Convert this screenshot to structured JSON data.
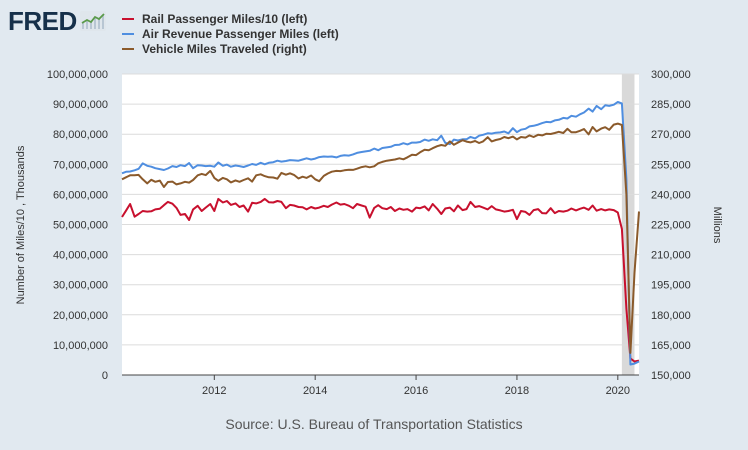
{
  "header": {
    "logo_text": "FRED",
    "logo_icon": "trend-line-icon"
  },
  "legend": [
    {
      "label": "Rail Passenger Miles/10 (left)",
      "color": "#c8102e"
    },
    {
      "label": "Air Revenue Passenger Miles (left)",
      "color": "#4f8ee0"
    },
    {
      "label": "Vehicle Miles Traveled (right)",
      "color": "#8b5a2b"
    }
  ],
  "source_text": "Source: U.S. Bureau of Transportation Statistics",
  "chart_data": {
    "type": "line",
    "ylabel": "Number of Miles/10 , Thousands",
    "ylabel_right": "Millions",
    "ylim": [
      0,
      100000000
    ],
    "ylim_right": [
      150000,
      300000
    ],
    "xlim": [
      2010.17,
      2020.42
    ],
    "recession_shading": [
      2020.08,
      2020.33
    ],
    "yticks_left": [
      "0",
      "10,000,000",
      "20,000,000",
      "30,000,000",
      "40,000,000",
      "50,000,000",
      "60,000,000",
      "70,000,000",
      "80,000,000",
      "90,000,000",
      "100,000,000"
    ],
    "yticks_right": [
      "150,000",
      "165,000",
      "180,000",
      "195,000",
      "210,000",
      "225,000",
      "240,000",
      "255,000",
      "270,000",
      "285,000",
      "300,000"
    ],
    "xticks": [
      {
        "label": "2012",
        "value": 2012
      },
      {
        "label": "2014",
        "value": 2014
      },
      {
        "label": "2016",
        "value": 2016
      },
      {
        "label": "2018",
        "value": 2018
      },
      {
        "label": "2020",
        "value": 2020
      }
    ],
    "series": [
      {
        "name": "Rail Passenger Miles/10 (left)",
        "axis": "left",
        "color": "#c8102e",
        "x": [
          2010.17,
          2010.25,
          2010.33,
          2010.42,
          2010.5,
          2010.58,
          2010.67,
          2010.75,
          2010.83,
          2010.92,
          2011.0,
          2011.08,
          2011.17,
          2011.25,
          2011.33,
          2011.42,
          2011.5,
          2011.58,
          2011.67,
          2011.75,
          2011.83,
          2011.92,
          2012.0,
          2012.08,
          2012.17,
          2012.25,
          2012.33,
          2012.42,
          2012.5,
          2012.58,
          2012.67,
          2012.75,
          2012.83,
          2012.92,
          2013.0,
          2013.08,
          2013.17,
          2013.25,
          2013.33,
          2013.42,
          2013.5,
          2013.58,
          2013.67,
          2013.75,
          2013.83,
          2013.92,
          2014.0,
          2014.08,
          2014.17,
          2014.25,
          2014.33,
          2014.42,
          2014.5,
          2014.58,
          2014.67,
          2014.75,
          2014.83,
          2014.92,
          2015.0,
          2015.08,
          2015.17,
          2015.25,
          2015.33,
          2015.42,
          2015.5,
          2015.58,
          2015.67,
          2015.75,
          2015.83,
          2015.92,
          2016.0,
          2016.08,
          2016.17,
          2016.25,
          2016.33,
          2016.42,
          2016.5,
          2016.58,
          2016.67,
          2016.75,
          2016.83,
          2016.92,
          2017.0,
          2017.08,
          2017.17,
          2017.25,
          2017.33,
          2017.42,
          2017.5,
          2017.58,
          2017.67,
          2017.75,
          2017.83,
          2017.92,
          2018.0,
          2018.08,
          2018.17,
          2018.25,
          2018.33,
          2018.42,
          2018.5,
          2018.58,
          2018.67,
          2018.75,
          2018.83,
          2018.92,
          2019.0,
          2019.08,
          2019.17,
          2019.25,
          2019.33,
          2019.42,
          2019.5,
          2019.58,
          2019.67,
          2019.75,
          2019.83,
          2019.92,
          2020.0,
          2020.08,
          2020.17,
          2020.25,
          2020.33,
          2020.42
        ],
        "values": [
          52.5,
          54.6,
          56.8,
          52.6,
          53.5,
          54.5,
          54.3,
          54.4,
          55.0,
          55.2,
          56.4,
          57.5,
          56.9,
          55.5,
          53.2,
          53.5,
          51.5,
          55.0,
          56.2,
          54.5,
          55.6,
          56.8,
          54.5,
          58.5,
          57.3,
          57.8,
          56.5,
          57.0,
          55.8,
          56.3,
          54.3,
          57.2,
          57.0,
          57.5,
          58.5,
          57.4,
          57.3,
          57.8,
          57.5,
          55.4,
          56.5,
          56.3,
          55.8,
          55.7,
          55.0,
          55.8,
          55.3,
          55.6,
          56.2,
          55.8,
          56.6,
          57.3,
          56.6,
          56.8,
          56.2,
          55.4,
          56.8,
          56.3,
          55.9,
          52.3,
          55.5,
          56.4,
          55.4,
          55.1,
          55.8,
          54.5,
          55.3,
          54.9,
          55.1,
          54.3,
          55.6,
          55.4,
          56.0,
          54.7,
          56.8,
          55.2,
          53.5,
          55.3,
          55.6,
          54.4,
          56.3,
          54.8,
          55.1,
          57.5,
          55.8,
          56.1,
          55.6,
          55.0,
          56.1,
          55.0,
          54.7,
          54.3,
          54.5,
          54.9,
          51.8,
          54.5,
          54.2,
          53.2,
          54.8,
          55.1,
          53.8,
          53.7,
          55.4,
          53.8,
          54.5,
          54.3,
          54.6,
          55.3,
          54.7,
          55.2,
          55.6,
          54.9,
          56.3,
          54.6,
          55.1,
          54.7,
          55.0,
          54.8,
          54.0,
          48.5,
          22.0,
          5.5,
          4.5,
          4.8
        ]
      },
      {
        "name": "Air Revenue Passenger Miles (left)",
        "axis": "left",
        "color": "#4f8ee0",
        "x": [
          2010.17,
          2010.25,
          2010.33,
          2010.42,
          2010.5,
          2010.58,
          2010.67,
          2010.75,
          2010.83,
          2010.92,
          2011.0,
          2011.08,
          2011.17,
          2011.25,
          2011.33,
          2011.42,
          2011.5,
          2011.58,
          2011.67,
          2011.75,
          2011.83,
          2011.92,
          2012.0,
          2012.08,
          2012.17,
          2012.25,
          2012.33,
          2012.42,
          2012.5,
          2012.58,
          2012.67,
          2012.75,
          2012.83,
          2012.92,
          2013.0,
          2013.08,
          2013.17,
          2013.25,
          2013.33,
          2013.42,
          2013.5,
          2013.58,
          2013.67,
          2013.75,
          2013.83,
          2013.92,
          2014.0,
          2014.08,
          2014.17,
          2014.25,
          2014.33,
          2014.42,
          2014.5,
          2014.58,
          2014.67,
          2014.75,
          2014.83,
          2014.92,
          2015.0,
          2015.08,
          2015.17,
          2015.25,
          2015.33,
          2015.42,
          2015.5,
          2015.58,
          2015.67,
          2015.75,
          2015.83,
          2015.92,
          2016.0,
          2016.08,
          2016.17,
          2016.25,
          2016.33,
          2016.42,
          2016.5,
          2016.58,
          2016.67,
          2016.75,
          2016.83,
          2016.92,
          2017.0,
          2017.08,
          2017.17,
          2017.25,
          2017.33,
          2017.42,
          2017.5,
          2017.58,
          2017.67,
          2017.75,
          2017.83,
          2017.92,
          2018.0,
          2018.08,
          2018.17,
          2018.25,
          2018.33,
          2018.42,
          2018.5,
          2018.58,
          2018.67,
          2018.75,
          2018.83,
          2018.92,
          2019.0,
          2019.08,
          2019.17,
          2019.25,
          2019.33,
          2019.42,
          2019.5,
          2019.58,
          2019.67,
          2019.75,
          2019.83,
          2019.92,
          2020.0,
          2020.08,
          2020.17,
          2020.25,
          2020.33,
          2020.42
        ],
        "values": [
          67.0,
          67.5,
          67.6,
          68.0,
          68.5,
          70.3,
          69.5,
          69.2,
          68.7,
          68.4,
          68.1,
          68.6,
          69.4,
          69.1,
          69.7,
          69.4,
          70.4,
          68.7,
          69.7,
          69.6,
          69.4,
          69.5,
          69.2,
          70.6,
          69.5,
          69.9,
          69.2,
          69.6,
          69.4,
          69.1,
          69.6,
          70.1,
          69.8,
          70.5,
          70.0,
          70.5,
          70.7,
          71.2,
          70.9,
          71.1,
          71.4,
          71.3,
          71.2,
          71.6,
          72.0,
          71.6,
          71.9,
          72.4,
          72.6,
          72.5,
          72.6,
          72.3,
          72.8,
          73.0,
          72.9,
          73.3,
          73.8,
          74.1,
          74.3,
          74.5,
          75.2,
          74.7,
          75.4,
          75.6,
          75.8,
          76.4,
          76.5,
          77.0,
          76.6,
          77.2,
          77.2,
          77.4,
          78.2,
          77.8,
          78.3,
          78.0,
          79.5,
          77.1,
          76.7,
          78.2,
          77.9,
          78.3,
          78.3,
          79.1,
          78.6,
          79.5,
          79.8,
          80.3,
          80.2,
          80.5,
          80.6,
          80.9,
          80.3,
          82.0,
          80.7,
          81.5,
          81.8,
          82.6,
          82.8,
          83.2,
          83.7,
          84.1,
          84.0,
          84.6,
          84.8,
          85.4,
          85.2,
          86.1,
          85.8,
          86.6,
          87.2,
          88.5,
          87.5,
          89.4,
          88.3,
          89.6,
          89.4,
          89.8,
          90.7,
          90.2,
          65.0,
          3.5,
          3.8,
          4.5
        ]
      },
      {
        "name": "Vehicle Miles Traveled (right)",
        "axis": "right",
        "color": "#8b5a2b",
        "x": [
          2010.17,
          2010.25,
          2010.33,
          2010.42,
          2010.5,
          2010.58,
          2010.67,
          2010.75,
          2010.83,
          2010.92,
          2011.0,
          2011.08,
          2011.17,
          2011.25,
          2011.33,
          2011.42,
          2011.5,
          2011.58,
          2011.67,
          2011.75,
          2011.83,
          2011.92,
          2012.0,
          2012.08,
          2012.17,
          2012.25,
          2012.33,
          2012.42,
          2012.5,
          2012.58,
          2012.67,
          2012.75,
          2012.83,
          2012.92,
          2013.0,
          2013.08,
          2013.17,
          2013.25,
          2013.33,
          2013.42,
          2013.5,
          2013.58,
          2013.67,
          2013.75,
          2013.83,
          2013.92,
          2014.0,
          2014.08,
          2014.17,
          2014.25,
          2014.33,
          2014.42,
          2014.5,
          2014.58,
          2014.67,
          2014.75,
          2014.83,
          2014.92,
          2015.0,
          2015.08,
          2015.17,
          2015.25,
          2015.33,
          2015.42,
          2015.5,
          2015.58,
          2015.67,
          2015.75,
          2015.83,
          2015.92,
          2016.0,
          2016.08,
          2016.17,
          2016.25,
          2016.33,
          2016.42,
          2016.5,
          2016.58,
          2016.67,
          2016.75,
          2016.83,
          2016.92,
          2017.0,
          2017.08,
          2017.17,
          2017.25,
          2017.33,
          2017.42,
          2017.5,
          2017.58,
          2017.67,
          2017.75,
          2017.83,
          2017.92,
          2018.0,
          2018.08,
          2018.17,
          2018.25,
          2018.33,
          2018.42,
          2018.5,
          2018.58,
          2018.67,
          2018.75,
          2018.83,
          2018.92,
          2019.0,
          2019.08,
          2019.17,
          2019.25,
          2019.33,
          2019.42,
          2019.5,
          2019.58,
          2019.67,
          2019.75,
          2019.83,
          2019.92,
          2020.0,
          2020.08,
          2020.17,
          2020.25,
          2020.33,
          2020.42
        ],
        "values": [
          247.5,
          248.5,
          249.5,
          249.5,
          249.7,
          247.5,
          245.5,
          247.3,
          246.3,
          246.9,
          243.7,
          246.2,
          246.4,
          245.0,
          245.5,
          246.3,
          245.9,
          247.2,
          249.5,
          250.2,
          249.6,
          251.7,
          248.2,
          246.8,
          248.2,
          247.5,
          246.0,
          247.0,
          246.3,
          247.2,
          248.0,
          246.4,
          249.5,
          250.0,
          249.1,
          248.5,
          248.4,
          247.8,
          250.7,
          249.8,
          250.5,
          249.7,
          247.9,
          248.8,
          248.2,
          249.4,
          247.5,
          246.6,
          249.2,
          250.4,
          251.3,
          251.7,
          251.6,
          252.0,
          252.3,
          252.2,
          252.8,
          253.6,
          254.0,
          253.5,
          254.0,
          255.5,
          256.2,
          256.8,
          257.1,
          257.4,
          258.0,
          257.5,
          258.5,
          259.8,
          259.6,
          261.0,
          262.3,
          262.0,
          263.0,
          264.0,
          264.6,
          264.2,
          266.4,
          264.7,
          265.8,
          267.0,
          266.3,
          265.9,
          266.6,
          265.6,
          266.4,
          268.5,
          266.4,
          267.1,
          267.6,
          268.6,
          268.0,
          268.8,
          267.4,
          268.6,
          268.3,
          269.4,
          268.6,
          269.7,
          269.4,
          270.2,
          270.1,
          270.6,
          271.2,
          270.6,
          272.7,
          271.0,
          271.0,
          271.7,
          272.6,
          269.9,
          273.6,
          271.4,
          272.8,
          273.5,
          272.2,
          274.8,
          275.3,
          274.6,
          240.0,
          161.0,
          201.0,
          231.5
        ]
      }
    ]
  }
}
